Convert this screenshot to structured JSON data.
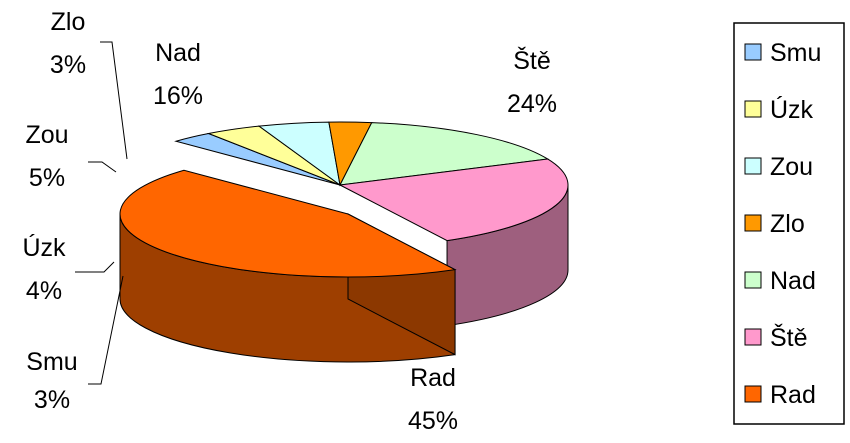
{
  "chart_data": {
    "type": "pie",
    "style": "3d-exploded",
    "categories": [
      "Smu",
      "Úzk",
      "Zou",
      "Zlo",
      "Nad",
      "Ště",
      "Rad"
    ],
    "values": [
      3,
      4,
      5,
      3,
      16,
      24,
      45
    ],
    "labels": [
      "3%",
      "4%",
      "5%",
      "3%",
      "16%",
      "24%",
      "45%"
    ],
    "colors": [
      "#99ccff",
      "#ffff99",
      "#ccffff",
      "#ff9900",
      "#ccffcc",
      "#ff99cc",
      "#ff6600"
    ],
    "exploded": "Rad",
    "legend": {
      "position": "right",
      "entries": [
        "Smu",
        "Úzk",
        "Zou",
        "Zlo",
        "Nad",
        "Ště",
        "Rad"
      ]
    },
    "title": ""
  }
}
